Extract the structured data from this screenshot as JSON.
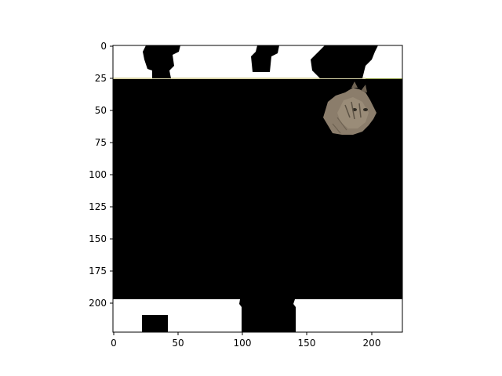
{
  "figure": {
    "image_description_role": "masked-image-plot",
    "x_ticks": [
      "0",
      "50",
      "100",
      "150",
      "200"
    ],
    "y_ticks": [
      "0",
      "25",
      "50",
      "75",
      "100",
      "125",
      "150",
      "175",
      "200"
    ],
    "x_range": [
      0,
      224
    ],
    "y_range": [
      0,
      224
    ],
    "colors": {
      "mask": "#000000",
      "background": "#ffffff",
      "grass": "#8a9a3e",
      "cat_fur": "#8b7d6b"
    },
    "subject": "cat-icon"
  }
}
